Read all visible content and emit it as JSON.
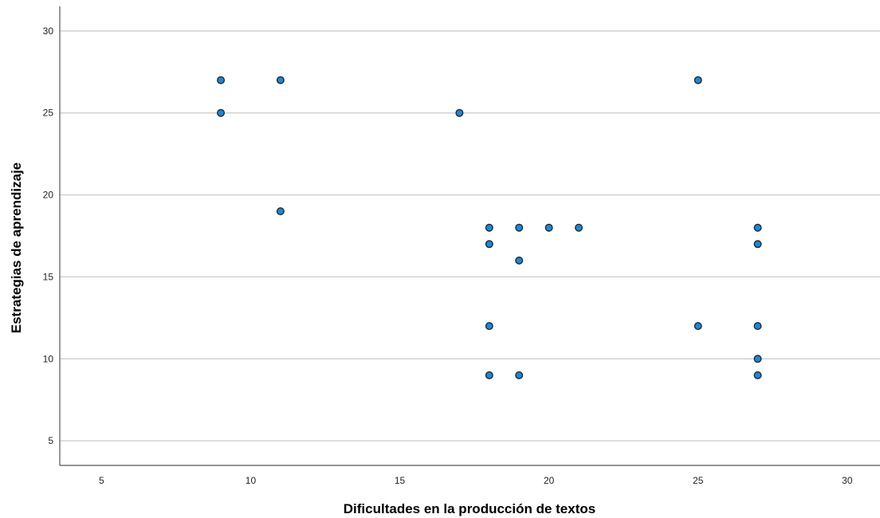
{
  "chart_data": {
    "type": "scatter",
    "title": "",
    "xlabel": "Dificultades en la producción de textos",
    "ylabel": "Estrategias de aprendizaje",
    "xlim": [
      3.6,
      31.1
    ],
    "ylim": [
      3.5,
      31.5
    ],
    "xticks": [
      5,
      10,
      15,
      20,
      25,
      30
    ],
    "yticks": [
      5,
      10,
      15,
      20,
      25,
      30
    ],
    "grid": "horizontal",
    "legend": "none",
    "colors": {
      "point_fill": "#1f87d0",
      "point_stroke": "#1a2a3a",
      "grid": "#c8c8c8",
      "axis": "#555555"
    },
    "points": [
      {
        "x": 9,
        "y": 27
      },
      {
        "x": 9,
        "y": 25
      },
      {
        "x": 11,
        "y": 27
      },
      {
        "x": 11,
        "y": 19
      },
      {
        "x": 17,
        "y": 25
      },
      {
        "x": 18,
        "y": 18
      },
      {
        "x": 18,
        "y": 17
      },
      {
        "x": 18,
        "y": 12
      },
      {
        "x": 18,
        "y": 9
      },
      {
        "x": 19,
        "y": 18
      },
      {
        "x": 19,
        "y": 16
      },
      {
        "x": 19,
        "y": 9
      },
      {
        "x": 20,
        "y": 18
      },
      {
        "x": 21,
        "y": 18
      },
      {
        "x": 25,
        "y": 27
      },
      {
        "x": 25,
        "y": 12
      },
      {
        "x": 27,
        "y": 18
      },
      {
        "x": 27,
        "y": 17
      },
      {
        "x": 27,
        "y": 12
      },
      {
        "x": 27,
        "y": 10
      },
      {
        "x": 27,
        "y": 9
      }
    ]
  }
}
